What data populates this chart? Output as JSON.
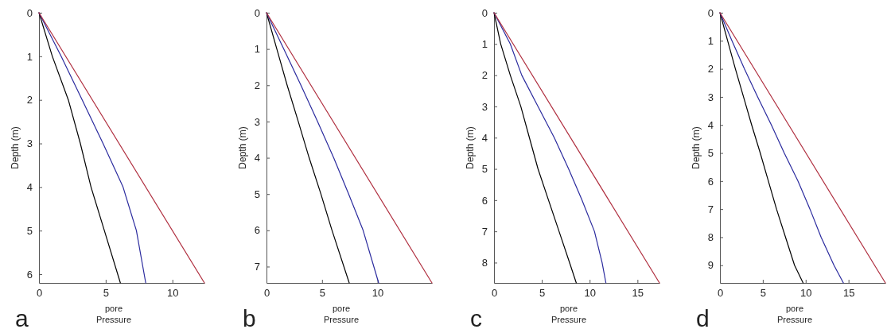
{
  "chart_data": [
    {
      "type": "line",
      "title": "a",
      "xlabel": "pore Pressure",
      "ylabel": "Depth (m)",
      "xlim": [
        0,
        12.4
      ],
      "xticks": [
        0,
        5,
        10
      ],
      "ylim": [
        6.2,
        0
      ],
      "yticks": [
        0,
        1,
        2,
        3,
        4,
        5,
        6
      ],
      "series": [
        {
          "color": "#000000",
          "x": [
            0,
            1.0,
            2.2,
            3.1,
            3.9,
            4.9,
            6.1
          ],
          "values": [
            0,
            1,
            2,
            3,
            4,
            5,
            6.2
          ]
        },
        {
          "color": "#2b2b9e",
          "x": [
            0,
            1.66,
            3.24,
            4.8,
            6.3,
            7.3,
            8.0
          ],
          "values": [
            0,
            1,
            2,
            3,
            4,
            5,
            6.2
          ]
        },
        {
          "color": "#b03040",
          "x": [
            0,
            12.4
          ],
          "values": [
            0,
            6.2
          ]
        }
      ]
    },
    {
      "type": "line",
      "title": "b",
      "xlabel": "pore Pressure",
      "ylabel": "Depth (m)",
      "xlim": [
        0,
        14.9
      ],
      "xticks": [
        0,
        5,
        10
      ],
      "ylim": [
        7.45,
        0
      ],
      "yticks": [
        0,
        1,
        2,
        3,
        4,
        5,
        6,
        7
      ],
      "series": [
        {
          "color": "#000000",
          "x": [
            0,
            0.93,
            1.86,
            2.86,
            3.84,
            4.9,
            5.9,
            7.45
          ],
          "values": [
            0,
            1,
            2,
            3,
            4,
            5,
            6,
            7.45
          ]
        },
        {
          "color": "#2b2b9e",
          "x": [
            0,
            1.56,
            3.1,
            4.6,
            6.05,
            7.4,
            8.7,
            10.1
          ],
          "values": [
            0,
            1,
            2,
            3,
            4,
            5,
            6,
            7.45
          ]
        },
        {
          "color": "#b03040",
          "x": [
            0,
            14.9
          ],
          "values": [
            0,
            7.45
          ]
        }
      ]
    },
    {
      "type": "line",
      "title": "c",
      "xlabel": "pore Pressure",
      "ylabel": "Depth (m)",
      "xlim": [
        0,
        17.3
      ],
      "xticks": [
        0,
        5,
        10,
        15
      ],
      "ylim": [
        8.65,
        0
      ],
      "yticks": [
        0,
        1,
        2,
        3,
        4,
        5,
        6,
        7,
        8
      ],
      "series": [
        {
          "color": "#000000",
          "x": [
            0,
            0.7,
            1.7,
            2.8,
            3.7,
            4.6,
            5.7,
            6.8,
            7.9,
            8.6
          ],
          "values": [
            0,
            1,
            2,
            3,
            4,
            5,
            6,
            7,
            8,
            8.65
          ]
        },
        {
          "color": "#2b2b9e",
          "x": [
            0,
            1.7,
            2.9,
            4.6,
            6.3,
            7.8,
            9.2,
            10.5,
            11.3,
            11.7
          ],
          "values": [
            0,
            1,
            2,
            3,
            4,
            5,
            6,
            7,
            8,
            8.65
          ]
        },
        {
          "color": "#b03040",
          "x": [
            0,
            17.3
          ],
          "values": [
            0,
            8.65
          ]
        }
      ]
    },
    {
      "type": "line",
      "title": "d",
      "xlabel": "pore Pressure",
      "ylabel": "Depth (m)",
      "xlim": [
        0,
        19.3
      ],
      "xticks": [
        0,
        5,
        10,
        15
      ],
      "ylim": [
        9.63,
        0
      ],
      "yticks": [
        0,
        1,
        2,
        3,
        4,
        5,
        6,
        7,
        8,
        9
      ],
      "series": [
        {
          "color": "#000000",
          "x": [
            0,
            0.9,
            1.8,
            2.75,
            3.7,
            4.7,
            5.65,
            6.6,
            7.65,
            8.7,
            9.7
          ],
          "values": [
            0,
            1,
            2,
            3,
            4,
            5,
            6,
            7,
            8,
            9,
            9.63
          ]
        },
        {
          "color": "#2b2b9e",
          "x": [
            0,
            1.4,
            2.85,
            4.4,
            6.0,
            7.5,
            9.1,
            10.5,
            11.8,
            13.3,
            14.4
          ],
          "values": [
            0,
            1,
            2,
            3,
            4,
            5,
            6,
            7,
            8,
            9,
            9.63
          ]
        },
        {
          "color": "#b03040",
          "x": [
            0,
            19.3
          ],
          "values": [
            0,
            9.63
          ]
        }
      ]
    }
  ]
}
